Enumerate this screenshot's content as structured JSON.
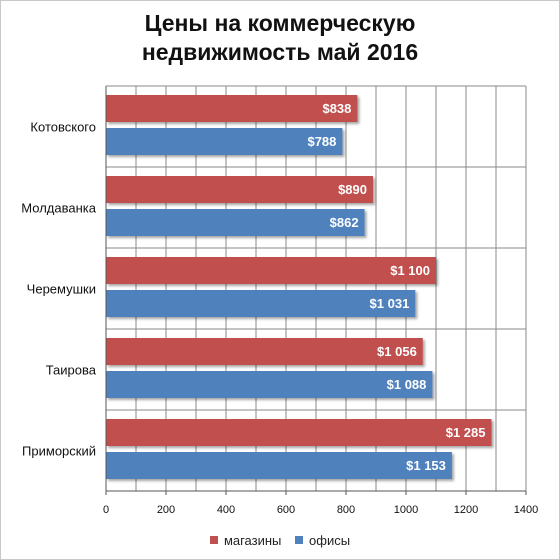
{
  "chart_data": {
    "type": "bar",
    "orientation": "horizontal",
    "title": "Цены на коммерческую недвижимость май 2016",
    "title_lines": [
      "Цены на коммерческую",
      "недвижимость май 2016"
    ],
    "categories": [
      "Котовского",
      "Молдаванка",
      "Черемушки",
      "Таирова",
      "Приморский"
    ],
    "series": [
      {
        "name": "магазины",
        "color": "#c0504d",
        "values": [
          838,
          890,
          1100,
          1056,
          1285
        ],
        "labels": [
          "$838",
          "$890",
          "$1 100",
          "$1 056",
          "$1 285"
        ]
      },
      {
        "name": "офисы",
        "color": "#4f81bd",
        "values": [
          788,
          862,
          1031,
          1088,
          1153
        ],
        "labels": [
          "$788",
          "$862",
          "$1 031",
          "$1 088",
          "$1 153"
        ]
      }
    ],
    "xlim": [
      0,
      1400
    ],
    "x_ticks": [
      0,
      200,
      400,
      600,
      800,
      1000,
      1200,
      1400
    ],
    "x_tick_labels": [
      "0",
      "200",
      "400",
      "600",
      "800",
      "1000",
      "1200",
      "1400"
    ],
    "minor_gridline_step": 100,
    "grid": true,
    "legend_position": "bottom"
  }
}
